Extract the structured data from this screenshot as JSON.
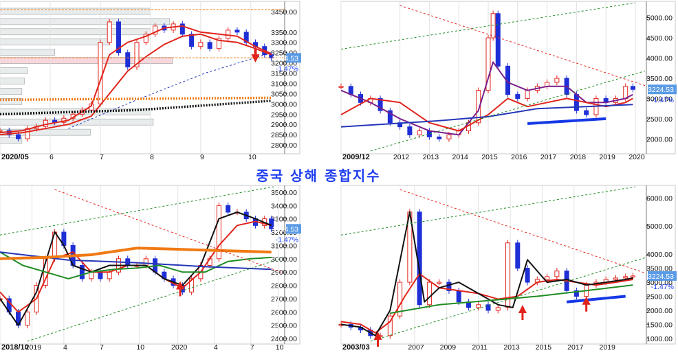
{
  "title": "중국 상해 종합지수",
  "colors": {
    "title": "#1f3df0",
    "up_candle": "#e0241c",
    "down_candle": "#1f2fd6",
    "ma_short": "#e0241c",
    "ma_purple": "#7a1f8a",
    "ma_green": "#1e8c22",
    "ma_black": "#111111",
    "ma_orange": "#f07a14",
    "ma_blue_thin": "#2336b8",
    "support_blue": "#1538e6",
    "trend_red_dash": "#e0241c",
    "trend_green_dash": "#1e8c22",
    "price_badge": "#5b9be6",
    "change_text": "#1a3fff"
  },
  "last_price": "3224.53",
  "change_pct": "-1.47%",
  "chart_data": [
    {
      "id": "daily",
      "type": "candlestick",
      "y_ticks": [
        "3450.00",
        "3350.00",
        "3300.00",
        "3250.00",
        "3200.00",
        "3150.00",
        "3100.00",
        "3050.00",
        "3000.00",
        "2950.00",
        "2900.00",
        "2850.00",
        "2800.00"
      ],
      "x_ticks": [
        "2020/05",
        "6",
        "7",
        "8",
        "9",
        "10"
      ],
      "ylim": [
        2770,
        3480
      ],
      "xlim": [
        0,
        120
      ],
      "tick_x": [
        0,
        22,
        44,
        66,
        88,
        110
      ],
      "price_badge": "3224.53",
      "change": "-1.47%",
      "volume_profile": [
        {
          "price": 3450,
          "rel": 0.55
        },
        {
          "price": 3400,
          "rel": 0.62
        },
        {
          "price": 3350,
          "rel": 0.55
        },
        {
          "price": 3300,
          "rel": 0.4
        },
        {
          "price": 3250,
          "rel": 0.2
        },
        {
          "price": 3210,
          "rel": 0.63
        },
        {
          "price": 3160,
          "rel": 0.1
        },
        {
          "price": 3110,
          "rel": 0.09
        },
        {
          "price": 3060,
          "rel": 0.08
        },
        {
          "price": 3010,
          "rel": 0.08
        },
        {
          "price": 2960,
          "rel": 0.55
        },
        {
          "price": 2910,
          "rel": 0.56
        },
        {
          "price": 2860,
          "rel": 0.33
        },
        {
          "price": 2820,
          "rel": 0.08
        }
      ],
      "series": [
        {
          "style": "candles",
          "x": [
            0,
            4,
            8,
            12,
            16,
            20,
            24,
            28,
            32,
            36,
            40,
            44,
            48,
            52,
            56,
            60,
            64,
            68,
            72,
            76,
            80,
            84,
            88,
            92,
            96,
            100,
            104,
            108,
            112,
            116,
            119
          ],
          "values": [
            2870,
            2850,
            2830,
            2880,
            2890,
            2920,
            2910,
            2930,
            2950,
            2970,
            3000,
            3300,
            3400,
            3250,
            3180,
            3300,
            3340,
            3380,
            3360,
            3390,
            3340,
            3280,
            3300,
            3270,
            3320,
            3360,
            3350,
            3300,
            3280,
            3240,
            3224
          ]
        },
        {
          "style": "line",
          "color_key": "ma_short",
          "x": [
            0,
            10,
            20,
            30,
            40,
            48,
            56,
            64,
            72,
            80,
            88,
            96,
            104,
            112,
            119
          ],
          "values": [
            2860,
            2870,
            2900,
            2920,
            2990,
            3240,
            3300,
            3330,
            3370,
            3380,
            3350,
            3340,
            3330,
            3280,
            3245
          ]
        },
        {
          "style": "line",
          "color_key": "ma_short",
          "x": [
            0,
            10,
            20,
            30,
            40,
            48,
            56,
            64,
            72,
            80,
            88,
            96,
            104,
            112,
            119
          ],
          "values": [
            2850,
            2860,
            2880,
            2900,
            2940,
            3050,
            3160,
            3230,
            3290,
            3330,
            3340,
            3310,
            3300,
            3270,
            3240
          ]
        },
        {
          "style": "dashed",
          "color_key": "ma_blue_thin",
          "x": [
            30,
            60,
            90,
            119
          ],
          "values": [
            2880,
            3020,
            3150,
            3250
          ]
        },
        {
          "style": "dotted",
          "color_key": "ma_orange",
          "x": [
            0,
            119
          ],
          "values": [
            3020,
            3030
          ]
        },
        {
          "style": "dotted",
          "color_key": "ma_black",
          "x": [
            0,
            60,
            119
          ],
          "values": [
            2950,
            2970,
            3015
          ]
        },
        {
          "style": "hline",
          "color_key": "ma_orange",
          "values": [
            3460
          ]
        },
        {
          "style": "hline",
          "color_key": "ma_orange",
          "values": [
            3225
          ]
        }
      ],
      "annotations": [
        {
          "type": "arrow_down",
          "x": 112,
          "y": 3195
        }
      ]
    },
    {
      "id": "weekly_long",
      "type": "candlestick",
      "y_ticks": [
        "5000.00",
        "4500.00",
        "4000.00",
        "3500.00",
        "3000.00",
        "2500.00",
        "2000.00"
      ],
      "x_ticks": [
        "2009/12",
        "2012",
        "2013",
        "2014",
        "2015",
        "2016",
        "2017",
        "2018",
        "2019",
        "2020"
      ],
      "ylim": [
        1700,
        5300
      ],
      "xlim": [
        0,
        120
      ],
      "tick_x": [
        0,
        24,
        36,
        48,
        60,
        72,
        84,
        96,
        108,
        120
      ],
      "price_badge": "3224.53",
      "change": "-1.47%",
      "series": [
        {
          "style": "candles",
          "x": [
            0,
            4,
            8,
            12,
            16,
            20,
            24,
            28,
            32,
            36,
            40,
            44,
            48,
            52,
            56,
            60,
            62,
            64,
            68,
            72,
            76,
            80,
            84,
            88,
            92,
            96,
            100,
            104,
            108,
            112,
            116,
            119
          ],
          "values": [
            3300,
            3100,
            2900,
            3000,
            2700,
            2400,
            2300,
            2100,
            2200,
            2050,
            2000,
            2100,
            2200,
            2400,
            3200,
            4500,
            5100,
            3800,
            3100,
            3000,
            3200,
            3300,
            3400,
            3500,
            3100,
            2700,
            2600,
            3000,
            2900,
            3000,
            3300,
            3224
          ]
        },
        {
          "style": "line",
          "color_key": "ma_purple",
          "x": [
            0,
            12,
            24,
            36,
            48,
            56,
            62,
            68,
            76,
            84,
            92,
            100,
            108,
            116,
            119
          ],
          "values": [
            3200,
            2900,
            2500,
            2200,
            2100,
            2700,
            3900,
            3400,
            3200,
            3300,
            3300,
            2900,
            2900,
            3000,
            3100
          ]
        },
        {
          "style": "line",
          "color_key": "ma_short",
          "x": [
            0,
            12,
            24,
            36,
            48,
            60,
            68,
            76,
            84,
            92,
            100,
            108,
            116,
            119
          ],
          "values": [
            2600,
            3000,
            2900,
            2400,
            2200,
            2600,
            3000,
            2800,
            2900,
            3000,
            2900,
            2800,
            2900,
            3000
          ]
        },
        {
          "style": "line",
          "color_key": "ma_blue_thin",
          "x": [
            0,
            40,
            60,
            80,
            100,
            119
          ],
          "values": [
            2300,
            2450,
            2550,
            2750,
            2800,
            2850
          ]
        },
        {
          "style": "thick",
          "color_key": "support_blue",
          "x": [
            76,
            108
          ],
          "values": [
            2380,
            2500
          ]
        }
      ]
    },
    {
      "id": "weekly_2018",
      "type": "candlestick",
      "y_ticks": [
        "3500.00",
        "3400.00",
        "3300.00",
        "3200.00",
        "3100.00",
        "3000.00",
        "2900.00",
        "2800.00",
        "2700.00",
        "2600.00",
        "2500.00",
        "2400.00"
      ],
      "x_ticks": [
        "2018/10",
        "2019",
        "4",
        "7",
        "10",
        "2020",
        "4",
        "7",
        "10"
      ],
      "ylim": [
        2380,
        3520
      ],
      "xlim": [
        0,
        120
      ],
      "tick_x": [
        0,
        14,
        28,
        44,
        61,
        78,
        94,
        110,
        122
      ],
      "price_badge": "3224.53",
      "change": "-1.47%",
      "series": [
        {
          "style": "candles",
          "x": [
            0,
            4,
            8,
            12,
            16,
            20,
            24,
            28,
            32,
            36,
            40,
            44,
            48,
            52,
            56,
            60,
            64,
            68,
            72,
            76,
            80,
            84,
            88,
            92,
            96,
            100,
            104,
            108,
            112,
            116,
            119
          ],
          "values": [
            2700,
            2600,
            2500,
            2600,
            2800,
            3000,
            3200,
            3100,
            2950,
            2850,
            2900,
            2850,
            2900,
            3000,
            2950,
            2950,
            3000,
            2900,
            2850,
            2800,
            2750,
            2850,
            2950,
            3000,
            3400,
            3350,
            3350,
            3300,
            3250,
            3300,
            3224
          ]
        },
        {
          "style": "line",
          "color_key": "ma_short",
          "x": [
            0,
            8,
            16,
            24,
            32,
            40,
            48,
            56,
            64,
            72,
            80,
            88,
            96,
            104,
            112,
            119
          ],
          "values": [
            2750,
            2600,
            2700,
            3000,
            3050,
            2900,
            2900,
            2950,
            2950,
            2850,
            2780,
            2900,
            3100,
            3250,
            3280,
            3250
          ]
        },
        {
          "style": "line",
          "color_key": "ma_black",
          "x": [
            0,
            8,
            16,
            24,
            28,
            32,
            40,
            48,
            56,
            64,
            72,
            80,
            88,
            96,
            104,
            112,
            119
          ],
          "values": [
            2700,
            2500,
            2750,
            3200,
            3100,
            2950,
            2900,
            2950,
            2950,
            2950,
            2850,
            2800,
            2950,
            3300,
            3350,
            3300,
            3250
          ]
        },
        {
          "style": "line",
          "color_key": "ma_green",
          "x": [
            0,
            10,
            20,
            30,
            40,
            50,
            60,
            70,
            80,
            90,
            100,
            110,
            119
          ],
          "values": [
            3050,
            2950,
            2900,
            2850,
            2900,
            2920,
            2930,
            2950,
            2900,
            2900,
            2980,
            3000,
            3010
          ]
        },
        {
          "style": "line",
          "color_key": "ma_blue_thin",
          "x": [
            0,
            30,
            60,
            90,
            119
          ],
          "values": [
            3050,
            2990,
            2970,
            2940,
            2920
          ]
        },
        {
          "style": "thick",
          "color_key": "ma_orange",
          "x": [
            0,
            20,
            40,
            60,
            80,
            100,
            119
          ],
          "values": [
            3000,
            3010,
            3030,
            3080,
            3070,
            3060,
            3050
          ]
        }
      ],
      "annotations": [
        {
          "type": "arrow_up",
          "x": 79,
          "y": 2780
        }
      ]
    },
    {
      "id": "monthly_2003",
      "type": "candlestick",
      "y_ticks": [
        "6000.00",
        "5000.00",
        "4000.00",
        "3500.00",
        "3000.00",
        "2500.00",
        "2000.00",
        "1500.00",
        "1000.00"
      ],
      "x_ticks": [
        "2003/03",
        "2007",
        "2009",
        "2011",
        "2013",
        "2015",
        "2017",
        "2019"
      ],
      "ylim": [
        900,
        6300
      ],
      "xlim": [
        0,
        120
      ],
      "tick_x": [
        0,
        30,
        43,
        56,
        69,
        82,
        95,
        108
      ],
      "price_badge": "3224.53",
      "change": "-1.47%",
      "series": [
        {
          "style": "candles",
          "x": [
            0,
            4,
            8,
            12,
            16,
            20,
            24,
            28,
            32,
            36,
            40,
            44,
            48,
            52,
            56,
            60,
            64,
            68,
            72,
            76,
            80,
            84,
            88,
            92,
            96,
            100,
            104,
            108,
            112,
            116,
            119
          ],
          "values": [
            1500,
            1400,
            1300,
            1100,
            1100,
            1800,
            3000,
            5500,
            2200,
            3000,
            3000,
            2700,
            2300,
            2100,
            2200,
            2000,
            2100,
            4400,
            3500,
            3000,
            3100,
            3200,
            3400,
            2700,
            2500,
            2900,
            3000,
            3100,
            3150,
            3200,
            3224
          ]
        },
        {
          "style": "line",
          "color_key": "ma_short",
          "x": [
            0,
            8,
            14,
            20,
            26,
            32,
            40,
            48,
            56,
            64,
            72,
            80,
            88,
            96,
            104,
            112,
            119
          ],
          "values": [
            1600,
            1500,
            1200,
            1600,
            2500,
            3300,
            2800,
            2700,
            2600,
            2400,
            2500,
            3000,
            3100,
            3000,
            2900,
            3000,
            3100
          ]
        },
        {
          "style": "line",
          "color_key": "ma_black",
          "x": [
            0,
            8,
            14,
            20,
            28,
            34,
            40,
            48,
            56,
            64,
            70,
            76,
            84,
            92,
            100,
            108,
            116,
            119
          ],
          "values": [
            1500,
            1400,
            1100,
            2000,
            5500,
            2300,
            2800,
            3000,
            2600,
            2200,
            2100,
            3800,
            3000,
            3100,
            2900,
            3000,
            3100,
            3150
          ]
        },
        {
          "style": "line",
          "color_key": "ma_green",
          "x": [
            20,
            40,
            60,
            80,
            100,
            119
          ],
          "values": [
            1900,
            2200,
            2350,
            2500,
            2700,
            2900
          ]
        },
        {
          "style": "thick",
          "color_key": "support_blue",
          "x": [
            92,
            116
          ],
          "values": [
            2300,
            2500
          ]
        }
      ],
      "annotations": [
        {
          "type": "arrow_up",
          "x": 15,
          "y": 1000
        },
        {
          "type": "arrow_up",
          "x": 74,
          "y": 1950
        },
        {
          "type": "arrow_up",
          "x": 100,
          "y": 2250
        }
      ]
    }
  ]
}
